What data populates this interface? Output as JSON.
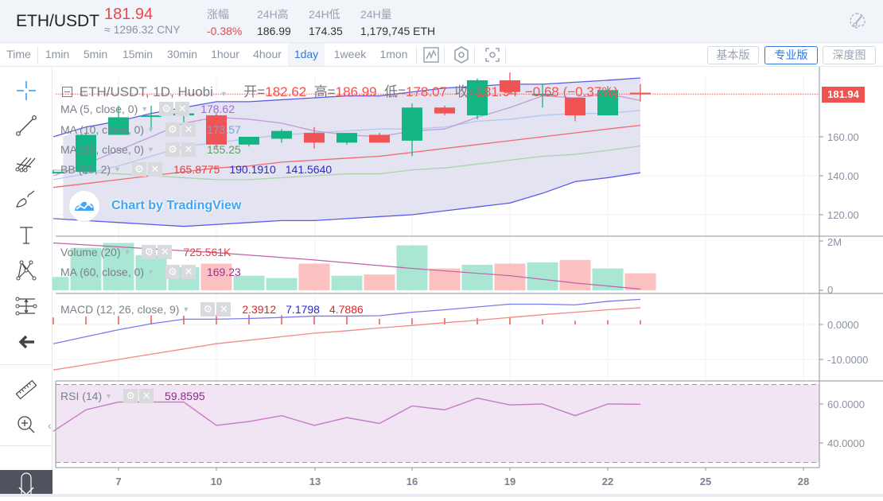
{
  "header": {
    "pair": "ETH/USDT",
    "price": "181.94",
    "price_cny": "≈ 1296.32 CNY",
    "stats": [
      {
        "label": "涨幅",
        "value": "-0.38%",
        "color": "red"
      },
      {
        "label": "24H高",
        "value": "186.99"
      },
      {
        "label": "24H低",
        "value": "174.35"
      },
      {
        "label": "24H量",
        "value": "1,179,745 ETH"
      }
    ],
    "theme_icon": "palette-icon"
  },
  "toolbar": {
    "intervals": [
      "Time",
      "1min",
      "5min",
      "15min",
      "30min",
      "1hour",
      "4hour",
      "1day",
      "1week",
      "1mon"
    ],
    "active_interval": "1day",
    "tools": [
      "chart-type-icon",
      "indicators-icon",
      "fullscreen-icon"
    ],
    "views": [
      {
        "label": "基本版",
        "active": false
      },
      {
        "label": "专业版",
        "active": true
      },
      {
        "label": "深度图",
        "active": false
      }
    ]
  },
  "sidebar": {
    "tools": [
      "crosshair-icon",
      "trend-line-icon",
      "pitchfork-icon",
      "brush-icon",
      "text-icon",
      "pattern-icon",
      "prediction-icon",
      "back-arrow-icon",
      "ruler-icon",
      "zoom-in-icon"
    ],
    "collapse_icon": "chevron-left-icon",
    "bottom_icon": "scroll-down-icon"
  },
  "chart": {
    "title": "ETH/USDT, 1D, Huobi",
    "ohlc": {
      "open_label": "开=",
      "open": "182.62",
      "high_label": "高=",
      "high": "186.99",
      "low_label": "低=",
      "low": "178.07",
      "close_label": "收=",
      "close": "181.94",
      "change": "−0.68 (−0.37%)"
    },
    "indicators": [
      {
        "name": "MA (5, close, 0)",
        "values": [
          "178.62"
        ],
        "colors": [
          "#9c6ade"
        ]
      },
      {
        "name": "MA (10, close, 0)",
        "values": [
          "173.57"
        ],
        "colors": [
          "#7ba6e0"
        ]
      },
      {
        "name": "MA (30, close, 0)",
        "values": [
          "155.25"
        ],
        "colors": [
          "#4caf50"
        ]
      },
      {
        "name": "BB (20, 2)",
        "values": [
          "165.8775",
          "190.1910",
          "141.5640"
        ],
        "colors": [
          "#ef3b3b",
          "#2828d8",
          "#2828d8"
        ]
      }
    ],
    "volume_indicators": [
      {
        "name": "Volume (20)",
        "values": [
          "725.561K"
        ],
        "colors": [
          "#ef3b3b"
        ]
      },
      {
        "name": "MA (60, close, 0)",
        "values": [
          "169.23"
        ],
        "colors": [
          "#a0308f"
        ]
      }
    ],
    "macd": {
      "name": "MACD (12, 26, close, 9)",
      "values": [
        "2.3912",
        "7.1798",
        "4.7886"
      ],
      "colors": [
        "#ef1e1e",
        "#2828d8",
        "#ef1e1e"
      ]
    },
    "rsi": {
      "name": "RSI (14)",
      "values": [
        "59.8595"
      ],
      "colors": [
        "#8e2b8e"
      ]
    },
    "watermark": "Chart by TradingView",
    "last_price_tag": "181.94"
  },
  "chart_data": {
    "type": "candlestick",
    "title": "ETH/USDT, 1D, Huobi",
    "x_ticks": [
      "7",
      "10",
      "13",
      "16",
      "19",
      "22",
      "25",
      "28"
    ],
    "price_axis": [
      "160.00",
      "140.00",
      "120.00"
    ],
    "volume_axis": [
      "2M",
      "0"
    ],
    "macd_axis": [
      "0.0000",
      "-10.0000"
    ],
    "rsi_axis": [
      "60.0000",
      "40.0000"
    ],
    "candles": [
      {
        "day": 5,
        "o": 142,
        "h": 143,
        "l": 141,
        "c": 142
      },
      {
        "day": 6,
        "o": 142,
        "h": 162,
        "l": 141,
        "c": 161
      },
      {
        "day": 7,
        "o": 161,
        "h": 176,
        "l": 161,
        "c": 170
      },
      {
        "day": 8,
        "o": 171,
        "h": 176,
        "l": 163,
        "c": 171
      },
      {
        "day": 9,
        "o": 171,
        "h": 175,
        "l": 166,
        "c": 172
      },
      {
        "day": 10,
        "o": 171,
        "h": 172,
        "l": 154,
        "c": 156
      },
      {
        "day": 11,
        "o": 156,
        "h": 160,
        "l": 155,
        "c": 160
      },
      {
        "day": 12,
        "o": 159,
        "h": 164,
        "l": 157,
        "c": 163
      },
      {
        "day": 13,
        "o": 162,
        "h": 165,
        "l": 154,
        "c": 157
      },
      {
        "day": 14,
        "o": 157,
        "h": 162,
        "l": 156,
        "c": 162
      },
      {
        "day": 15,
        "o": 161,
        "h": 162,
        "l": 157,
        "c": 157
      },
      {
        "day": 16,
        "o": 158,
        "h": 177,
        "l": 150,
        "c": 175
      },
      {
        "day": 17,
        "o": 175,
        "h": 176,
        "l": 171,
        "c": 172
      },
      {
        "day": 18,
        "o": 171,
        "h": 190,
        "l": 169,
        "c": 189
      },
      {
        "day": 19,
        "o": 189,
        "h": 193,
        "l": 182,
        "c": 183
      },
      {
        "day": 20,
        "o": 182,
        "h": 187,
        "l": 175,
        "c": 182
      },
      {
        "day": 21,
        "o": 180,
        "h": 180,
        "l": 168,
        "c": 171
      },
      {
        "day": 22,
        "o": 171,
        "h": 186,
        "l": 171,
        "c": 184
      },
      {
        "day": 23,
        "o": 182.62,
        "h": 186.99,
        "l": 178.07,
        "c": 181.94
      }
    ],
    "ma5": [
      [
        5,
        140
      ],
      [
        6,
        146
      ],
      [
        7,
        153
      ],
      [
        8,
        160
      ],
      [
        9,
        167
      ],
      [
        10,
        170
      ],
      [
        11,
        169
      ],
      [
        12,
        167
      ],
      [
        13,
        163
      ],
      [
        14,
        161
      ],
      [
        15,
        160
      ],
      [
        16,
        163
      ],
      [
        17,
        164
      ],
      [
        18,
        170
      ],
      [
        19,
        175
      ],
      [
        20,
        181
      ],
      [
        21,
        180
      ],
      [
        22,
        182
      ],
      [
        23,
        178.62
      ]
    ],
    "ma10": [
      [
        5,
        138
      ],
      [
        6,
        141
      ],
      [
        7,
        145
      ],
      [
        8,
        150
      ],
      [
        9,
        155
      ],
      [
        10,
        157
      ],
      [
        11,
        159
      ],
      [
        12,
        161
      ],
      [
        13,
        162
      ],
      [
        14,
        163
      ],
      [
        15,
        164
      ],
      [
        16,
        164
      ],
      [
        17,
        165
      ],
      [
        18,
        168
      ],
      [
        19,
        169
      ],
      [
        20,
        171
      ],
      [
        21,
        172
      ],
      [
        22,
        172
      ],
      [
        23,
        173.57
      ]
    ],
    "ma30": [
      [
        5,
        143
      ],
      [
        6,
        142
      ],
      [
        7,
        141
      ],
      [
        8,
        140
      ],
      [
        9,
        139
      ],
      [
        10,
        138
      ],
      [
        11,
        138
      ],
      [
        12,
        139
      ],
      [
        13,
        140
      ],
      [
        14,
        141
      ],
      [
        15,
        141
      ],
      [
        16,
        143
      ],
      [
        17,
        144
      ],
      [
        18,
        146
      ],
      [
        19,
        148
      ],
      [
        20,
        150
      ],
      [
        21,
        151
      ],
      [
        22,
        153
      ],
      [
        23,
        155.25
      ]
    ],
    "bb_mid": [
      [
        5,
        134
      ],
      [
        6,
        136
      ],
      [
        7,
        138
      ],
      [
        8,
        140
      ],
      [
        9,
        142
      ],
      [
        10,
        144
      ],
      [
        11,
        145
      ],
      [
        12,
        147
      ],
      [
        13,
        148
      ],
      [
        14,
        149
      ],
      [
        15,
        150
      ],
      [
        16,
        152
      ],
      [
        17,
        154
      ],
      [
        18,
        156
      ],
      [
        19,
        158
      ],
      [
        20,
        160
      ],
      [
        21,
        162
      ],
      [
        22,
        164
      ],
      [
        23,
        165.88
      ]
    ],
    "bb_upper": [
      [
        5,
        160
      ],
      [
        6,
        165
      ],
      [
        7,
        168
      ],
      [
        8,
        172
      ],
      [
        9,
        175
      ],
      [
        10,
        178
      ],
      [
        11,
        178
      ],
      [
        12,
        179
      ],
      [
        13,
        180
      ],
      [
        14,
        181
      ],
      [
        15,
        181
      ],
      [
        16,
        183
      ],
      [
        17,
        185
      ],
      [
        18,
        186
      ],
      [
        19,
        187
      ],
      [
        20,
        187
      ],
      [
        21,
        188
      ],
      [
        22,
        189
      ],
      [
        23,
        190.19
      ]
    ],
    "bb_lower": [
      [
        5,
        118
      ],
      [
        6,
        117
      ],
      [
        7,
        116
      ],
      [
        8,
        115
      ],
      [
        9,
        114
      ],
      [
        10,
        115
      ],
      [
        11,
        116
      ],
      [
        12,
        117
      ],
      [
        13,
        117
      ],
      [
        14,
        118
      ],
      [
        15,
        119
      ],
      [
        16,
        120
      ],
      [
        17,
        122
      ],
      [
        18,
        124
      ],
      [
        19,
        126
      ],
      [
        20,
        131
      ],
      [
        21,
        137
      ],
      [
        22,
        139
      ],
      [
        23,
        141.56
      ]
    ],
    "volume": [
      {
        "day": 5,
        "v": 0.55,
        "up": true
      },
      {
        "day": 6,
        "v": 1.75,
        "up": true
      },
      {
        "day": 7,
        "v": 1.95,
        "up": true
      },
      {
        "day": 8,
        "v": 1.45,
        "up": true
      },
      {
        "day": 9,
        "v": 0.95,
        "up": true
      },
      {
        "day": 10,
        "v": 1.1,
        "up": false
      },
      {
        "day": 11,
        "v": 0.6,
        "up": true
      },
      {
        "day": 12,
        "v": 0.5,
        "up": true
      },
      {
        "day": 13,
        "v": 1.1,
        "up": false
      },
      {
        "day": 14,
        "v": 0.6,
        "up": true
      },
      {
        "day": 15,
        "v": 0.65,
        "up": false
      },
      {
        "day": 16,
        "v": 1.85,
        "up": true
      },
      {
        "day": 17,
        "v": 0.9,
        "up": false
      },
      {
        "day": 18,
        "v": 1.05,
        "up": true
      },
      {
        "day": 19,
        "v": 1.1,
        "up": false
      },
      {
        "day": 20,
        "v": 1.15,
        "up": true
      },
      {
        "day": 21,
        "v": 1.25,
        "up": false
      },
      {
        "day": 22,
        "v": 0.9,
        "up": true
      },
      {
        "day": 23,
        "v": 0.7,
        "up": false
      }
    ],
    "volume_ma": [
      [
        5,
        1.95
      ],
      [
        10,
        1.55
      ],
      [
        13,
        1.25
      ],
      [
        16,
        0.9
      ],
      [
        19,
        0.6
      ],
      [
        21,
        0.3
      ],
      [
        23,
        0.05
      ]
    ],
    "macd_line": [
      [
        5,
        -5.5
      ],
      [
        6,
        -3.5
      ],
      [
        7,
        -1.5
      ],
      [
        8,
        0.2
      ],
      [
        9,
        1.5
      ],
      [
        10,
        1.5
      ],
      [
        11,
        1.7
      ],
      [
        12,
        2
      ],
      [
        13,
        2.4
      ],
      [
        14,
        2.4
      ],
      [
        15,
        2.5
      ],
      [
        16,
        3.5
      ],
      [
        17,
        4.2
      ],
      [
        18,
        5
      ],
      [
        19,
        5.8
      ],
      [
        20,
        5.8
      ],
      [
        21,
        5.6
      ],
      [
        22,
        6.6
      ],
      [
        23,
        7.18
      ]
    ],
    "signal_line": [
      [
        5,
        -13
      ],
      [
        6,
        -11.5
      ],
      [
        7,
        -10
      ],
      [
        8,
        -8.5
      ],
      [
        9,
        -7
      ],
      [
        10,
        -5.5
      ],
      [
        11,
        -4.5
      ],
      [
        12,
        -3.5
      ],
      [
        13,
        -2.5
      ],
      [
        14,
        -1.8
      ],
      [
        15,
        -1
      ],
      [
        16,
        -0.3
      ],
      [
        17,
        0.5
      ],
      [
        18,
        1.2
      ],
      [
        19,
        2
      ],
      [
        20,
        2.8
      ],
      [
        21,
        3.5
      ],
      [
        22,
        4.2
      ],
      [
        23,
        4.79
      ]
    ],
    "histogram": [
      [
        5,
        4
      ],
      [
        6,
        4.5
      ],
      [
        7,
        4.8
      ],
      [
        8,
        5.2
      ],
      [
        9,
        5
      ],
      [
        10,
        5.5
      ],
      [
        11,
        5.6
      ],
      [
        12,
        5.3
      ],
      [
        13,
        4.8
      ],
      [
        14,
        4.5
      ],
      [
        15,
        3.2
      ],
      [
        16,
        3.5
      ],
      [
        17,
        3.6
      ],
      [
        18,
        3.8
      ],
      [
        19,
        3.7
      ],
      [
        20,
        3.0
      ],
      [
        21,
        2.2
      ],
      [
        22,
        2.4
      ],
      [
        23,
        2.39
      ]
    ],
    "rsi": [
      [
        5,
        46
      ],
      [
        6,
        57
      ],
      [
        7,
        61
      ],
      [
        8,
        61
      ],
      [
        9,
        61
      ],
      [
        10,
        49
      ],
      [
        11,
        51
      ],
      [
        12,
        54
      ],
      [
        13,
        49
      ],
      [
        14,
        53
      ],
      [
        15,
        50
      ],
      [
        16,
        59
      ],
      [
        17,
        57
      ],
      [
        18,
        63
      ],
      [
        19,
        59.5
      ],
      [
        20,
        60
      ],
      [
        21,
        54
      ],
      [
        22,
        60
      ],
      [
        23,
        59.86
      ]
    ],
    "rsi_band": [
      70,
      30
    ]
  }
}
